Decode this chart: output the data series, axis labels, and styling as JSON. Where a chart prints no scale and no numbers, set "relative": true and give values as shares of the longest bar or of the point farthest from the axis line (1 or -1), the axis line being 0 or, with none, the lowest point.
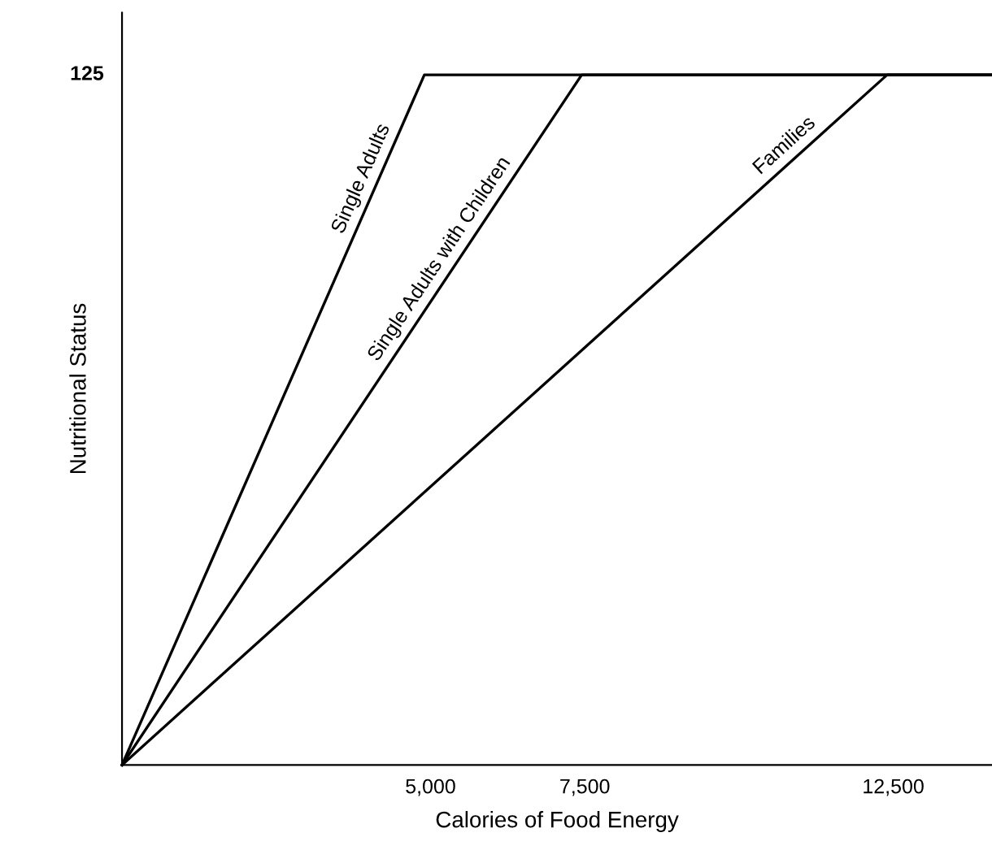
{
  "chart_data": {
    "type": "line",
    "xlabel": "Calories of Food Energy",
    "ylabel": "Nutritional Status",
    "relative": true,
    "annotations": [
      "125"
    ],
    "xlim": [
      0,
      14100
    ],
    "xticks": [
      {
        "value": 5000,
        "label": "5,000"
      },
      {
        "value": 7500,
        "label": "7,500"
      },
      {
        "value": 12500,
        "label": "12,500"
      }
    ],
    "grid": false,
    "legend": false,
    "marker": "none",
    "line_style": "solid",
    "series": [
      {
        "name": "Single Adults",
        "color": "#000000",
        "x": [
          0,
          4900,
          14100
        ],
        "values": [
          0,
          1,
          1
        ]
      },
      {
        "name": "Single Adults with Children",
        "color": "#000000",
        "x": [
          0,
          7450,
          14100
        ],
        "values": [
          0,
          1,
          1
        ]
      },
      {
        "name": "Families",
        "color": "#000000",
        "x": [
          0,
          12400,
          14100
        ],
        "values": [
          0,
          1,
          1
        ]
      }
    ]
  }
}
